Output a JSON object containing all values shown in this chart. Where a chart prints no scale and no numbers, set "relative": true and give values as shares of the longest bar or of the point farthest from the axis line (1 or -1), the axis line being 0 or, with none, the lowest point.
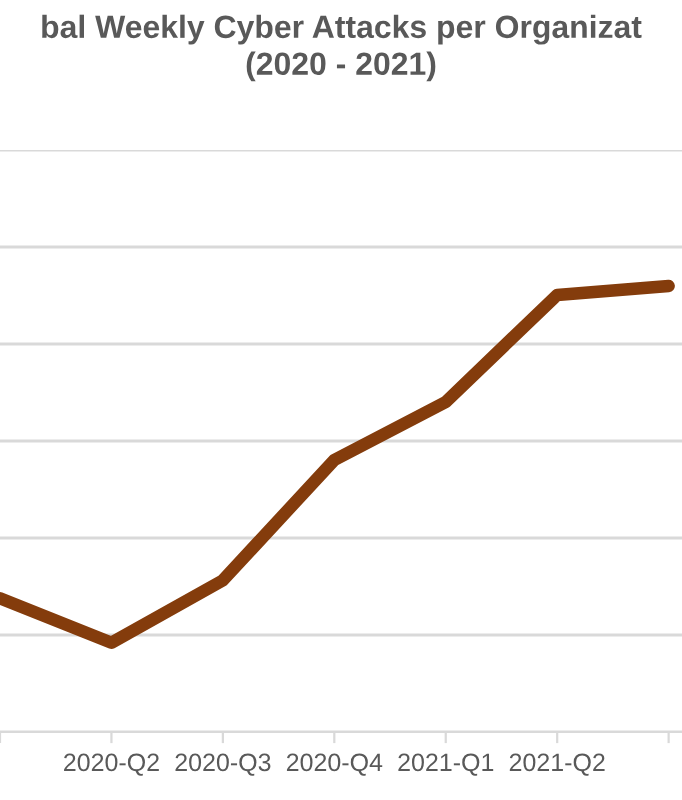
{
  "chart_data": {
    "type": "line",
    "title": "bal Weekly Cyber Attacks per Organizat\n(2020 - 2021)",
    "categories": [
      null,
      "2020-Q2",
      "2020-Q3",
      "2020-Q4",
      "2021-Q1",
      "2021-Q2",
      null
    ],
    "series": [
      {
        "color": "#843c0c",
        "values": [
          0.3,
          0.2,
          0.34,
          0.61,
          0.74,
          0.98,
          1.0
        ]
      }
    ],
    "relative": true,
    "grid": "y",
    "marker": "none",
    "line_style": "solid",
    "legend": false
  }
}
